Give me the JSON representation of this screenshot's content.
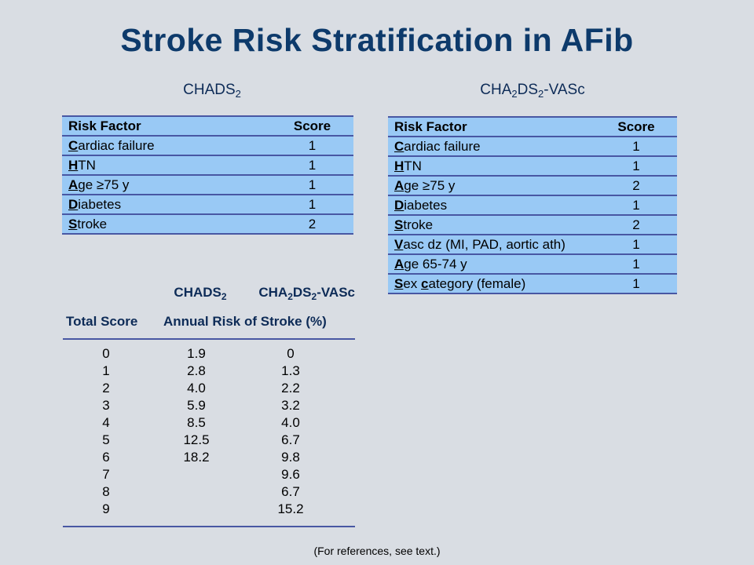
{
  "title": "Stroke Risk Stratification in AFib",
  "chads2": {
    "heading_main": "CHADS",
    "heading_sub": "2",
    "col_factor": "Risk Factor",
    "col_score": "Score",
    "rows": [
      {
        "letter": "C",
        "rest": "ardiac failure",
        "score": "1"
      },
      {
        "letter": "H",
        "rest": "TN",
        "score": "1"
      },
      {
        "letter": "A",
        "rest": "ge ≥75 y",
        "score": "1"
      },
      {
        "letter": "D",
        "rest": "iabetes",
        "score": "1"
      },
      {
        "letter": "S",
        "rest": "troke",
        "score": "2"
      }
    ]
  },
  "vasc": {
    "heading_a": "CHA",
    "heading_sub1": "2",
    "heading_b": "DS",
    "heading_sub2": "2",
    "heading_c": "-VASc",
    "col_factor": "Risk Factor",
    "col_score": "Score",
    "rows": [
      {
        "letter": "C",
        "rest": "ardiac failure",
        "score": "1"
      },
      {
        "letter": "H",
        "rest": "TN",
        "score": "1"
      },
      {
        "letter": "A",
        "rest": "ge ≥75 y",
        "score": "2"
      },
      {
        "letter": "D",
        "rest": "iabetes",
        "score": "1"
      },
      {
        "letter": "S",
        "rest": "troke",
        "score": "2"
      },
      {
        "letter": "V",
        "rest": "asc dz (MI, PAD, aortic ath)",
        "score": "1"
      },
      {
        "letter": "A",
        "rest": "ge 65-74 y",
        "score": "1"
      },
      {
        "letter": "S",
        "rest": "ex ",
        "letter2": "c",
        "rest2": "ategory (female)",
        "score": "1"
      }
    ]
  },
  "risk": {
    "col1_main": "CHADS",
    "col1_sub": "2",
    "col2_a": "CHA",
    "col2_sub1": "2",
    "col2_b": "DS",
    "col2_sub2": "2",
    "col2_c": "-VASc",
    "label_total": "Total Score",
    "label_annual": "Annual Risk of Stroke (%)",
    "rows": [
      {
        "score": "0",
        "chads2": "1.9",
        "vasc": "0"
      },
      {
        "score": "1",
        "chads2": "2.8",
        "vasc": "1.3"
      },
      {
        "score": "2",
        "chads2": "4.0",
        "vasc": "2.2"
      },
      {
        "score": "3",
        "chads2": "5.9",
        "vasc": "3.2"
      },
      {
        "score": "4",
        "chads2": "8.5",
        "vasc": "4.0"
      },
      {
        "score": "5",
        "chads2": "12.5",
        "vasc": "6.7"
      },
      {
        "score": "6",
        "chads2": "18.2",
        "vasc": "9.8"
      },
      {
        "score": "7",
        "chads2": "",
        "vasc": "9.6"
      },
      {
        "score": "8",
        "chads2": "",
        "vasc": "6.7"
      },
      {
        "score": "9",
        "chads2": "",
        "vasc": "15.2"
      }
    ]
  },
  "footnote": "(For references, see text.)"
}
